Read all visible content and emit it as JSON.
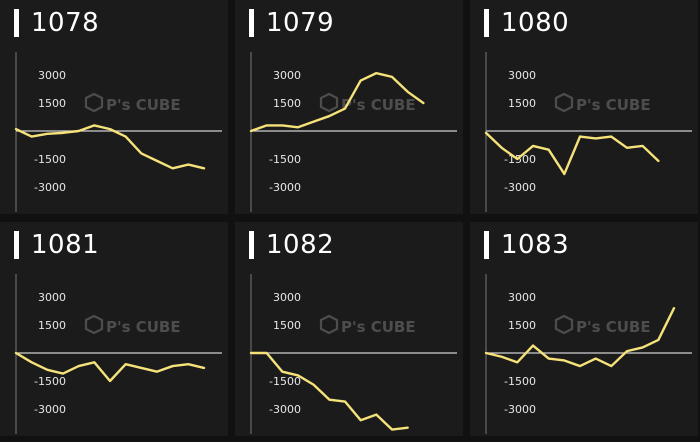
{
  "colors": {
    "line": "#f5e27a",
    "zero": "#cfcfcf",
    "axis": "#777777",
    "text": "#e6e6e6",
    "bg": "#1b1b1b"
  },
  "watermark": {
    "brand": "P's CUBE"
  },
  "chart_data": [
    {
      "type": "line",
      "title": "1078",
      "ylim": [
        -4500,
        4500
      ],
      "y_ticks": [
        3000,
        1500,
        -1500,
        -3000
      ],
      "x": [
        0,
        1,
        2,
        3,
        4,
        5,
        6,
        7,
        8,
        9,
        10,
        11,
        12
      ],
      "values": [
        100,
        -300,
        -150,
        -100,
        0,
        300,
        100,
        -300,
        -1200,
        -1600,
        -2000,
        -1800,
        -2000
      ]
    },
    {
      "type": "line",
      "title": "1079",
      "ylim": [
        -4500,
        4500
      ],
      "y_ticks": [
        3000,
        1500,
        -1500,
        -3000
      ],
      "x": [
        0,
        1,
        2,
        3,
        4,
        5,
        6,
        7,
        8,
        9,
        10,
        11,
        12
      ],
      "values": [
        0,
        300,
        300,
        200,
        500,
        800,
        1200,
        2700,
        3100,
        2900,
        2100,
        1500,
        null
      ]
    },
    {
      "type": "line",
      "title": "1080",
      "ylim": [
        -4500,
        4500
      ],
      "y_ticks": [
        3000,
        1500,
        -1500,
        -3000
      ],
      "x": [
        0,
        1,
        2,
        3,
        4,
        5,
        6,
        7,
        8,
        9,
        10,
        11,
        12
      ],
      "values": [
        -100,
        -900,
        -1500,
        -800,
        -1000,
        -2300,
        -300,
        -400,
        -300,
        -900,
        -800,
        -1600,
        null
      ]
    },
    {
      "type": "line",
      "title": "1081",
      "ylim": [
        -4500,
        4500
      ],
      "y_ticks": [
        3000,
        1500,
        -1500,
        -3000
      ],
      "x": [
        0,
        1,
        2,
        3,
        4,
        5,
        6,
        7,
        8,
        9,
        10,
        11,
        12
      ],
      "values": [
        0,
        -500,
        -900,
        -1100,
        -700,
        -500,
        -1500,
        -600,
        -800,
        -1000,
        -700,
        -600,
        -800
      ]
    },
    {
      "type": "line",
      "title": "1082",
      "ylim": [
        -4500,
        4500
      ],
      "y_ticks": [
        3000,
        1500,
        -1500,
        -3000
      ],
      "x": [
        0,
        1,
        2,
        3,
        4,
        5,
        6,
        7,
        8,
        9,
        10,
        11,
        12
      ],
      "values": [
        0,
        0,
        -1000,
        -1200,
        -1700,
        -2500,
        -2600,
        -3600,
        -3300,
        -4100,
        -4000,
        null,
        null
      ]
    },
    {
      "type": "line",
      "title": "1083",
      "ylim": [
        -4500,
        4500
      ],
      "y_ticks": [
        3000,
        1500,
        -1500,
        -3000
      ],
      "x": [
        0,
        1,
        2,
        3,
        4,
        5,
        6,
        7,
        8,
        9,
        10,
        11,
        12
      ],
      "values": [
        0,
        -200,
        -500,
        400,
        -300,
        -400,
        -700,
        -300,
        -700,
        100,
        300,
        700,
        2400
      ]
    }
  ]
}
